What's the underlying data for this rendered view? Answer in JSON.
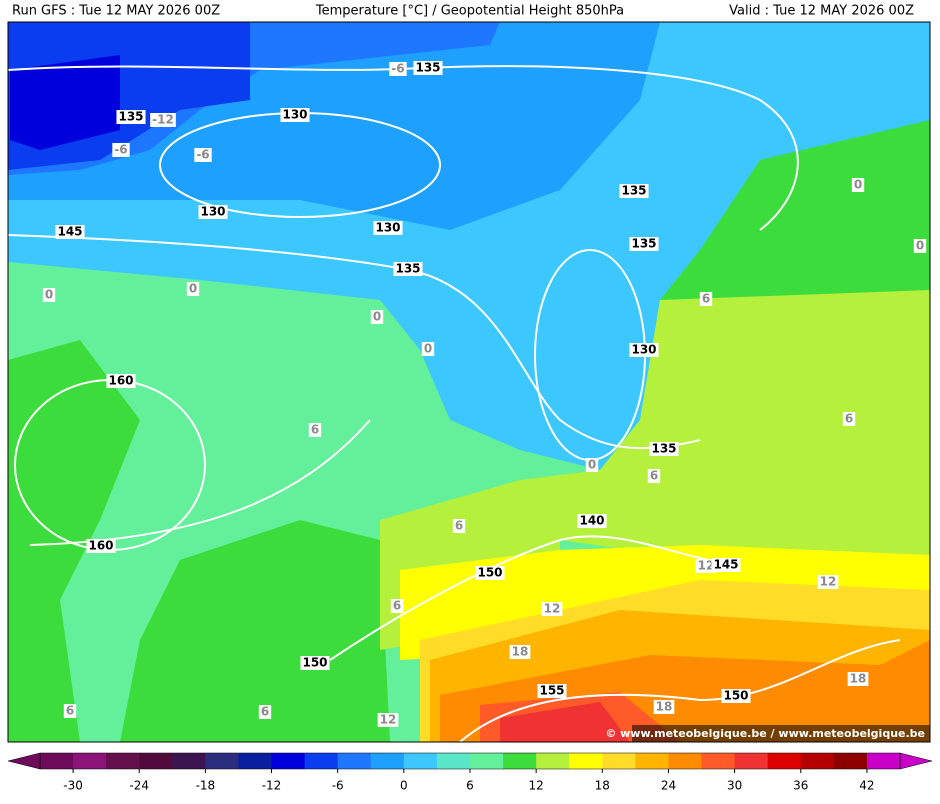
{
  "header": {
    "left": "Run GFS : Tue 12 MAY 2026 00Z",
    "center": "Temperature [°C] / Geopotential Height 850hPa",
    "right": "Valid : Tue 12 MAY 2026 00Z"
  },
  "height_labels": [
    135,
    135,
    130,
    130,
    130,
    135,
    145,
    135,
    135,
    130,
    160,
    160,
    135,
    140,
    145,
    150,
    150,
    155,
    150
  ],
  "temperature_labels": [
    -6,
    -12,
    -6,
    -6,
    0,
    0,
    0,
    0,
    0,
    0,
    6,
    6,
    6,
    0,
    6,
    6,
    12,
    12,
    12,
    6,
    18,
    18,
    18,
    6,
    6,
    12
  ],
  "colorbar": {
    "range": [
      -33,
      45
    ],
    "ticks": [
      -30,
      -24,
      -18,
      -12,
      -6,
      0,
      6,
      12,
      18,
      24,
      30,
      36,
      42
    ],
    "colors": [
      "#6e0a5a",
      "#8c1478",
      "#64104c",
      "#500a3c",
      "#3c1450",
      "#2d2d7d",
      "#0a1ea0",
      "#0000dc",
      "#0a3cf0",
      "#1e78ff",
      "#1ea0ff",
      "#3cc8ff",
      "#5ae6c8",
      "#64f09a",
      "#3cdc3c",
      "#b4f03c",
      "#ffff00",
      "#ffdc28",
      "#ffb400",
      "#ff8c00",
      "#ff5a28",
      "#f03232",
      "#dc0000",
      "#b40000",
      "#8c0000",
      "#c800c8"
    ]
  },
  "credit": "© www.meteobelgique.be / www.meteobelgique.be"
}
